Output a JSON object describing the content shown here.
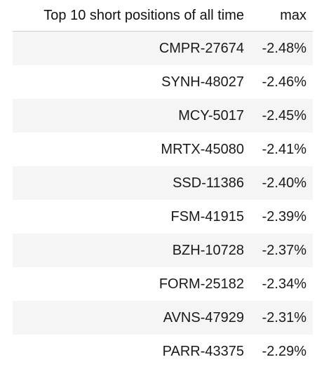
{
  "table": {
    "columns": [
      "Top 10 short positions of all time",
      "max"
    ],
    "rows": [
      {
        "name": "CMPR-27674",
        "max": "-2.48%"
      },
      {
        "name": "SYNH-48027",
        "max": "-2.46%"
      },
      {
        "name": "MCY-5017",
        "max": "-2.45%"
      },
      {
        "name": "MRTX-45080",
        "max": "-2.41%"
      },
      {
        "name": "SSD-11386",
        "max": "-2.40%"
      },
      {
        "name": "FSM-41915",
        "max": "-2.39%"
      },
      {
        "name": "BZH-10728",
        "max": "-2.37%"
      },
      {
        "name": "FORM-25182",
        "max": "-2.34%"
      },
      {
        "name": "AVNS-47929",
        "max": "-2.31%"
      },
      {
        "name": "PARR-43375",
        "max": "-2.29%"
      }
    ]
  }
}
